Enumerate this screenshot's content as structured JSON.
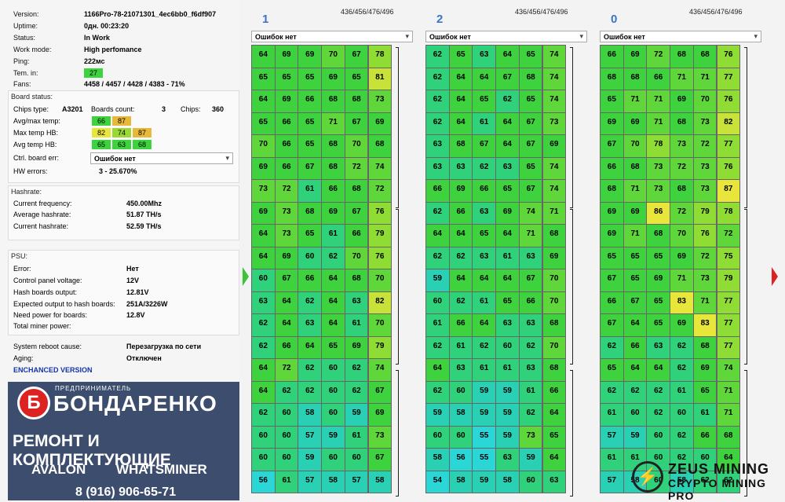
{
  "status": {
    "version_label": "Version:",
    "version": "1166Pro-78-21071301_4ec6bb0_f6df907",
    "uptime_label": "Uptime:",
    "uptime": "0дн. 00:23:20",
    "status_label": "Status:",
    "status": "In Work",
    "workmode_label": "Work mode:",
    "workmode": "High perfomance",
    "ping_label": "Ping:",
    "ping": "222мс",
    "temin_label": "Tem. in:",
    "temin": "27",
    "fans_label": "Fans:",
    "fans": "4458 / 4457 / 4428 / 4383 - 71%"
  },
  "board": {
    "title": "Board status:",
    "chipstype_label": "Chips type:",
    "chipstype": "A3201",
    "count_label": "Boards count:",
    "count": "3",
    "chips_label": "Chips:",
    "chips": "360",
    "avgmax_label": "Avg/max temp:",
    "avgmax": [
      "66",
      "87"
    ],
    "maxhb_label": "Max temp HB:",
    "maxhb": [
      "82",
      "74",
      "87"
    ],
    "avghb_label": "Avg temp HB:",
    "avghb": [
      "65",
      "63",
      "68"
    ],
    "ctrl_label": "Ctrl. board err:",
    "ctrl": "Ошибок нет",
    "hw_label": "HW errors:",
    "hw": "3 - 25.670%"
  },
  "hashrate": {
    "title": "Hashrate:",
    "freq_label": "Current frequency:",
    "freq": "450.00Mhz",
    "avg_label": "Average hashrate:",
    "avg": "51.87 TH/s",
    "cur_label": "Current hashrate:",
    "cur": "52.59 TH/s"
  },
  "psu": {
    "title": "PSU:",
    "error_label": "Error:",
    "error": "Нет",
    "cpv_label": "Control panel voltage:",
    "cpv": "12V",
    "hbo_label": "Hash boards output:",
    "hbo": "12.81V",
    "exp_label": "Expected output to hash boards:",
    "exp": "251A/3226W",
    "need_label": "Need power for boards:",
    "need": "12.8V",
    "total_label": "Total miner power:",
    "total": ""
  },
  "system": {
    "reboot_label": "System reboot cause:",
    "reboot": "Перезагрузка по сети",
    "aging_label": "Aging:",
    "aging": "Отключен",
    "enhanced": "ENCHANCED VERSION"
  },
  "banner": {
    "line1": "ПРЕДПРИНИМАТЕЛЬ",
    "line2": "БОНДАРЕНКО",
    "line3": "РЕМОНТ И КОМПЛЕКТУЮЩИЕ",
    "line4": "AVALON WHATSMINER",
    "line5": "8 (916) 906-65-71",
    "logo_letter": "Б"
  },
  "watermark": {
    "line1": "ZEUS MINING",
    "line2": "CRYPTO MINING PRO",
    "icon": "lightning-icon"
  },
  "colors": {
    "green": "#3fd23f",
    "yellow": "#e8e63a",
    "orange": "#e8b83a",
    "cyan": "#2ad6d6"
  },
  "boards": [
    {
      "num": "1",
      "freqs": "436/456/476/496",
      "select": "Ошибок нет",
      "temps": [
        [
          64,
          69,
          69,
          70,
          67,
          78
        ],
        [
          65,
          65,
          65,
          69,
          65,
          81
        ],
        [
          64,
          69,
          66,
          68,
          68,
          73
        ],
        [
          65,
          66,
          65,
          71,
          67,
          69
        ],
        [
          70,
          66,
          65,
          68,
          70,
          68
        ],
        [
          69,
          66,
          67,
          68,
          72,
          74
        ],
        [
          73,
          72,
          61,
          66,
          68,
          72
        ],
        [
          69,
          73,
          68,
          69,
          67,
          76
        ],
        [
          64,
          73,
          65,
          61,
          66,
          79
        ],
        [
          64,
          69,
          60,
          62,
          70,
          76
        ],
        [
          60,
          67,
          66,
          64,
          68,
          70
        ],
        [
          63,
          64,
          62,
          64,
          63,
          82
        ],
        [
          62,
          64,
          63,
          64,
          61,
          70
        ],
        [
          62,
          66,
          64,
          65,
          69,
          79
        ],
        [
          64,
          72,
          62,
          60,
          62,
          74
        ],
        [
          64,
          62,
          62,
          60,
          62,
          67
        ],
        [
          62,
          60,
          58,
          60,
          59,
          69
        ],
        [
          60,
          60,
          57,
          59,
          61,
          73
        ],
        [
          60,
          60,
          59,
          60,
          60,
          67
        ],
        [
          56,
          61,
          57,
          58,
          57,
          58
        ]
      ]
    },
    {
      "num": "2",
      "freqs": "436/456/476/496",
      "select": "Ошибок нет",
      "temps": [
        [
          62,
          65,
          63,
          64,
          65,
          74
        ],
        [
          62,
          64,
          64,
          67,
          68,
          74
        ],
        [
          62,
          64,
          65,
          62,
          65,
          74
        ],
        [
          62,
          64,
          61,
          64,
          67,
          73
        ],
        [
          63,
          68,
          67,
          64,
          67,
          69
        ],
        [
          63,
          63,
          62,
          63,
          65,
          74
        ],
        [
          66,
          69,
          66,
          65,
          67,
          74
        ],
        [
          62,
          66,
          63,
          69,
          74,
          71
        ],
        [
          64,
          64,
          65,
          64,
          71,
          68
        ],
        [
          62,
          62,
          63,
          61,
          63,
          69
        ],
        [
          59,
          64,
          64,
          64,
          67,
          70
        ],
        [
          60,
          62,
          61,
          65,
          66,
          70
        ],
        [
          61,
          66,
          64,
          63,
          63,
          68
        ],
        [
          62,
          61,
          62,
          60,
          62,
          70
        ],
        [
          64,
          63,
          61,
          61,
          63,
          68
        ],
        [
          62,
          60,
          59,
          59,
          61,
          66
        ],
        [
          59,
          58,
          59,
          59,
          62,
          64
        ],
        [
          60,
          60,
          55,
          59,
          73,
          65
        ],
        [
          58,
          56,
          55,
          63,
          59,
          64
        ],
        [
          54,
          58,
          59,
          58,
          60,
          63
        ]
      ]
    },
    {
      "num": "0",
      "freqs": "436/456/476/496",
      "select": "Ошибок нет",
      "temps": [
        [
          66,
          69,
          72,
          68,
          68,
          76
        ],
        [
          68,
          68,
          66,
          71,
          71,
          77
        ],
        [
          65,
          71,
          71,
          69,
          70,
          76
        ],
        [
          69,
          69,
          71,
          68,
          73,
          82
        ],
        [
          67,
          70,
          78,
          73,
          72,
          77
        ],
        [
          66,
          68,
          73,
          72,
          73,
          76
        ],
        [
          68,
          71,
          73,
          68,
          73,
          87
        ],
        [
          69,
          69,
          86,
          72,
          79,
          78
        ],
        [
          69,
          71,
          68,
          70,
          76,
          72
        ],
        [
          65,
          65,
          65,
          69,
          72,
          75
        ],
        [
          67,
          65,
          69,
          71,
          73,
          79
        ],
        [
          66,
          67,
          65,
          83,
          71,
          77
        ],
        [
          67,
          64,
          65,
          69,
          83,
          77
        ],
        [
          62,
          66,
          63,
          62,
          68,
          77
        ],
        [
          65,
          64,
          64,
          62,
          69,
          74
        ],
        [
          62,
          62,
          62,
          61,
          65,
          71
        ],
        [
          61,
          60,
          62,
          60,
          61,
          71
        ],
        [
          57,
          59,
          60,
          62,
          66,
          68
        ],
        [
          61,
          61,
          60,
          62,
          60,
          64
        ],
        [
          57,
          58,
          60,
          58,
          62,
          62
        ]
      ]
    }
  ]
}
